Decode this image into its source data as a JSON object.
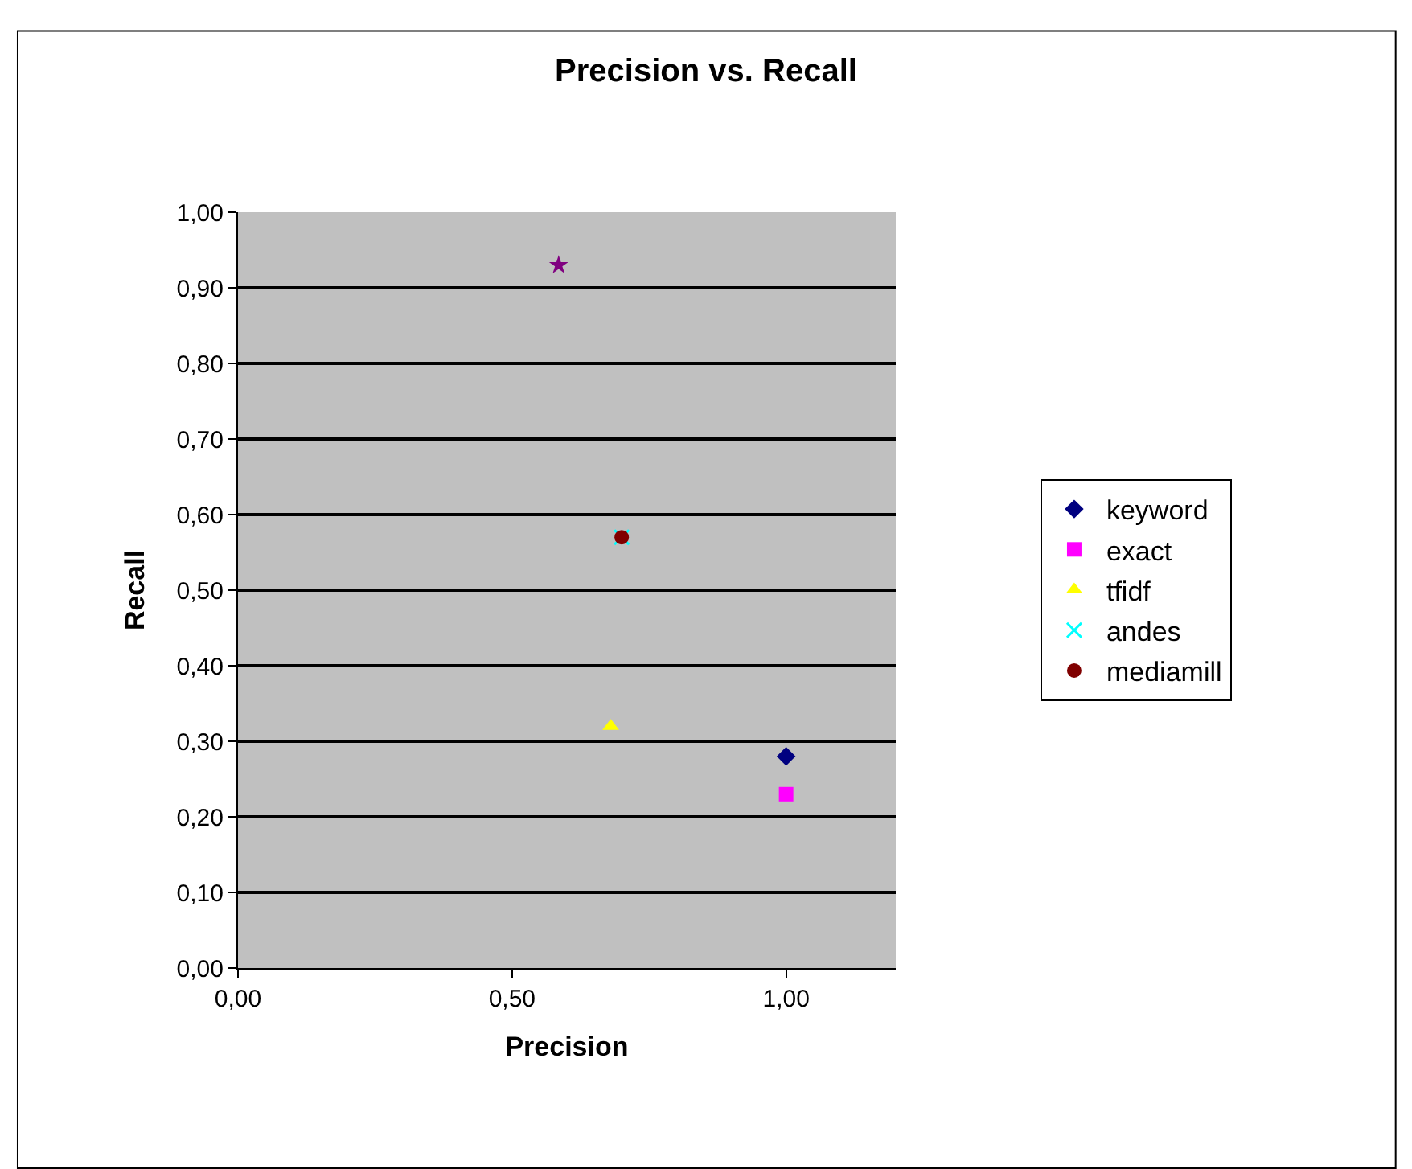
{
  "chart_data": {
    "type": "scatter",
    "title": "Precision vs. Recall",
    "xlabel": "Precision",
    "ylabel": "Recall",
    "xlim": [
      0,
      1.2
    ],
    "xticks": [
      {
        "value": 0,
        "label": "0,00"
      },
      {
        "value": 0.5,
        "label": "0,50"
      },
      {
        "value": 1,
        "label": "1,00"
      }
    ],
    "ylim": [
      0,
      1
    ],
    "yticks": [
      {
        "value": 0,
        "label": "0,00"
      },
      {
        "value": 0.1,
        "label": "0,10"
      },
      {
        "value": 0.2,
        "label": "0,20"
      },
      {
        "value": 0.3,
        "label": "0,30"
      },
      {
        "value": 0.4,
        "label": "0,40"
      },
      {
        "value": 0.5,
        "label": "0,50"
      },
      {
        "value": 0.6,
        "label": "0,60"
      },
      {
        "value": 0.7,
        "label": "0,70"
      },
      {
        "value": 0.8,
        "label": "0,80"
      },
      {
        "value": 0.9,
        "label": "0,90"
      },
      {
        "value": 1,
        "label": "1,00"
      }
    ],
    "grid": "y",
    "legend": "right",
    "series": [
      {
        "name": "keyword",
        "color": "#000080",
        "marker": "diamond",
        "x": [
          1.0
        ],
        "values": [
          0.28
        ]
      },
      {
        "name": "exact",
        "color": "#ff00ff",
        "marker": "square",
        "x": [
          1.0
        ],
        "values": [
          0.23
        ]
      },
      {
        "name": "tfidf",
        "color": "#ffff00",
        "marker": "triangle",
        "x": [
          0.68
        ],
        "values": [
          0.32
        ]
      },
      {
        "name": "andes",
        "color": "#00ffff",
        "marker": "cross",
        "x": [
          0.7
        ],
        "values": [
          0.57
        ]
      },
      {
        "color": "#800080",
        "marker": "star",
        "x": [
          0.585
        ],
        "values": [
          0.93
        ]
      },
      {
        "name": "mediamill",
        "color": "#800000",
        "marker": "circle",
        "x": [
          0.7
        ],
        "values": [
          0.57
        ]
      }
    ]
  }
}
